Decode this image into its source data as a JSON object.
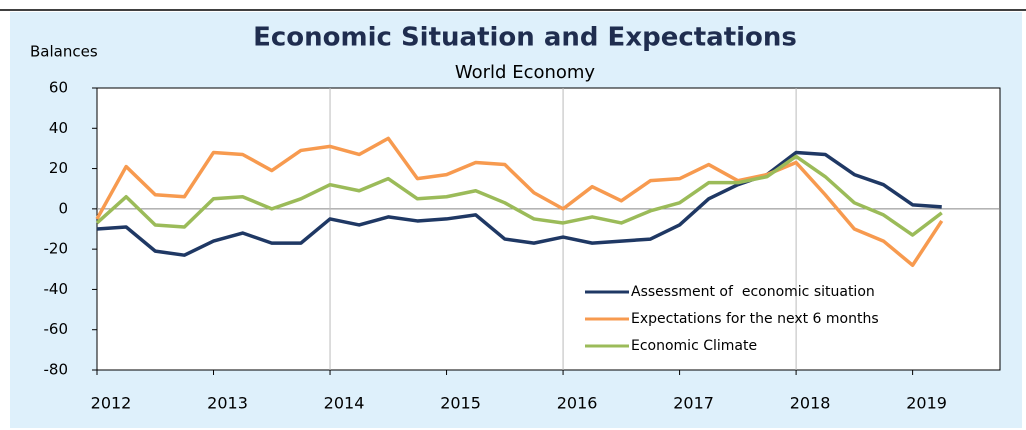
{
  "chart_data": {
    "type": "line",
    "title": "Economic Situation and Expectations",
    "subtitle": "World Economy",
    "y_axis_label": "Balances",
    "x": [
      2012,
      2012.25,
      2012.5,
      2012.75,
      2013,
      2013.25,
      2013.5,
      2013.75,
      2014,
      2014.25,
      2014.5,
      2014.75,
      2015,
      2015.25,
      2015.5,
      2015.75,
      2016,
      2016.25,
      2016.5,
      2016.75,
      2017,
      2017.25,
      2017.5,
      2017.75,
      2018,
      2018.25,
      2018.5,
      2018.75,
      2019,
      2019.25
    ],
    "series": [
      {
        "name": "Assessment of  economic situation",
        "color": "#1f3864",
        "values": [
          -10,
          -9,
          -21,
          -23,
          -16,
          -12,
          -17,
          -17,
          -5,
          -8,
          -4,
          -6,
          -5,
          -3,
          -15,
          -17,
          -14,
          -17,
          -16,
          -15,
          -8,
          5,
          12,
          17,
          28,
          27,
          17,
          12,
          2,
          1
        ]
      },
      {
        "name": "Expectations for the next 6 months",
        "color": "#f79a4f",
        "values": [
          -5,
          21,
          7,
          6,
          28,
          27,
          19,
          29,
          31,
          27,
          35,
          15,
          17,
          23,
          22,
          8,
          0,
          11,
          4,
          14,
          15,
          22,
          14,
          17,
          23,
          7,
          -10,
          -16,
          -28,
          -6
        ]
      },
      {
        "name": "Economic Climate",
        "color": "#9bbb59",
        "values": [
          -7,
          6,
          -8,
          -9,
          5,
          6,
          0,
          5,
          12,
          9,
          15,
          5,
          6,
          9,
          3,
          -5,
          -7,
          -4,
          -7,
          -1,
          3,
          13,
          13,
          16,
          26,
          16,
          3,
          -3,
          -13,
          -2
        ]
      }
    ],
    "xlim": [
      2012,
      2019.75
    ],
    "xticks": [
      2012,
      2013,
      2014,
      2015,
      2016,
      2017,
      2018,
      2019
    ],
    "ylim": [
      -80,
      60
    ],
    "yticks": [
      60,
      40,
      20,
      0,
      -20,
      -40,
      -60,
      -80
    ],
    "legend": "lower right"
  }
}
